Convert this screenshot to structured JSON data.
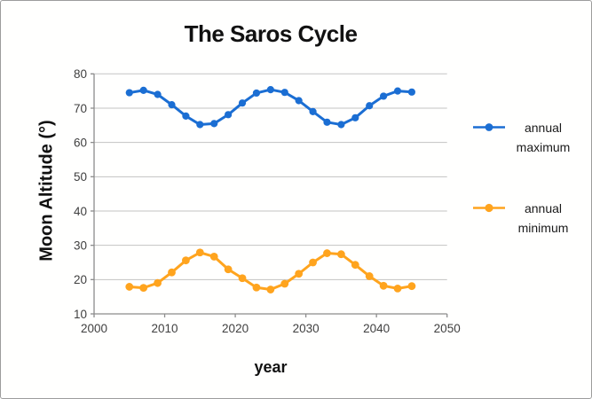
{
  "colors": {
    "background": "#fffffe",
    "outer_border": "#9c9c9c",
    "gridline": "#c3c3c3",
    "axis": "#8c8c8c",
    "tick_label": "#3F3F3F",
    "title_text": "#111111",
    "series_max": "#1B6ED3",
    "series_min": "#FFA41E"
  },
  "chart": {
    "x_ticks": [
      "2000",
      "2010",
      "2020",
      "2030",
      "2040",
      "2050"
    ],
    "y_ticks": [
      "10",
      "20",
      "30",
      "40",
      "50",
      "60",
      "70",
      "80"
    ]
  },
  "legend": {
    "items": [
      {
        "line1": "annual",
        "line2": "maximum"
      },
      {
        "line1": "annual",
        "line2": "minimum"
      }
    ]
  },
  "chart_data": {
    "type": "line",
    "title": "The Saros Cycle",
    "xlabel": "year",
    "ylabel": "Moon Altitude (°)",
    "xlim": [
      2000,
      2050
    ],
    "ylim": [
      10,
      80
    ],
    "grid": true,
    "legend_position": "right",
    "x": [
      2005,
      2007,
      2009,
      2011,
      2013,
      2015,
      2017,
      2019,
      2021,
      2023,
      2025,
      2027,
      2029,
      2031,
      2033,
      2035,
      2037,
      2039,
      2041,
      2043,
      2045
    ],
    "series": [
      {
        "name": "annual maximum",
        "color": "#1B6ED3",
        "marker": "circle",
        "values": [
          74.5,
          75.2,
          74.0,
          71.0,
          67.7,
          65.2,
          65.5,
          68.1,
          71.5,
          74.4,
          75.4,
          74.6,
          72.2,
          69.0,
          65.9,
          65.2,
          67.2,
          70.7,
          73.5,
          75.0,
          74.7
        ]
      },
      {
        "name": "annual minimum",
        "color": "#FFA41E",
        "marker": "circle",
        "values": [
          17.9,
          17.6,
          19.0,
          22.1,
          25.6,
          27.9,
          26.7,
          23.0,
          20.4,
          17.7,
          17.1,
          18.8,
          21.7,
          25.0,
          27.7,
          27.4,
          24.3,
          21.0,
          18.2,
          17.4,
          18.1
        ]
      }
    ]
  }
}
